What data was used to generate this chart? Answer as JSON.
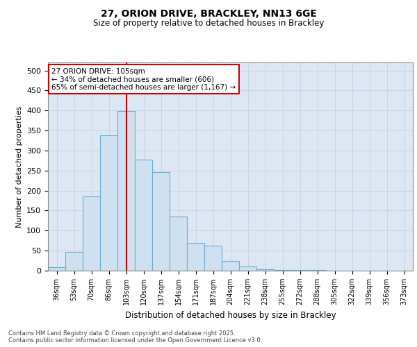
{
  "title": "27, ORION DRIVE, BRACKLEY, NN13 6GE",
  "subtitle": "Size of property relative to detached houses in Brackley",
  "xlabel": "Distribution of detached houses by size in Brackley",
  "ylabel": "Number of detached properties",
  "categories": [
    "36sqm",
    "53sqm",
    "70sqm",
    "86sqm",
    "103sqm",
    "120sqm",
    "137sqm",
    "154sqm",
    "171sqm",
    "187sqm",
    "204sqm",
    "221sqm",
    "238sqm",
    "255sqm",
    "272sqm",
    "288sqm",
    "305sqm",
    "322sqm",
    "339sqm",
    "356sqm",
    "373sqm"
  ],
  "values": [
    8,
    46,
    185,
    338,
    399,
    278,
    246,
    135,
    70,
    63,
    25,
    11,
    4,
    2,
    1,
    1,
    0,
    0,
    0,
    0,
    0
  ],
  "bar_color": "#cfe0f0",
  "bar_edge_color": "#6aaed6",
  "grid_color": "#c8d4e4",
  "bg_color": "#dde7f3",
  "vline_x": 4,
  "vline_color": "#cc0000",
  "annotation_text": "27 ORION DRIVE: 105sqm\n← 34% of detached houses are smaller (606)\n65% of semi-detached houses are larger (1,167) →",
  "annotation_box_color": "#ffffff",
  "annotation_box_edge": "#cc0000",
  "footer_text": "Contains HM Land Registry data © Crown copyright and database right 2025.\nContains public sector information licensed under the Open Government Licence v3.0.",
  "ylim": [
    0,
    520
  ],
  "yticks": [
    0,
    50,
    100,
    150,
    200,
    250,
    300,
    350,
    400,
    450,
    500
  ]
}
